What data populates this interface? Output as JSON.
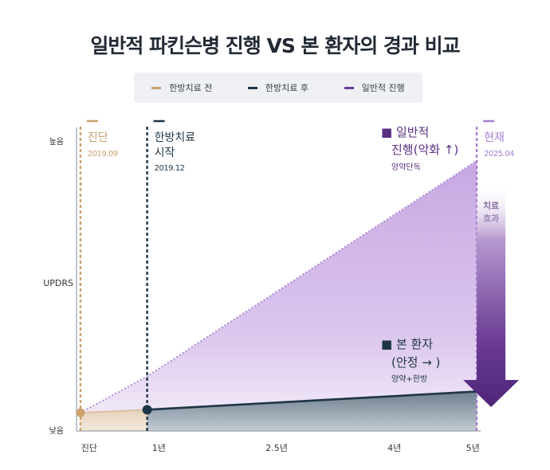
{
  "title": "일반적 파킨슨병 진행 VS 본 환자의 경과 비교",
  "legend": [
    {
      "label": "한방치료 전",
      "color": "#c9a26e"
    },
    {
      "label": "한방치료 후",
      "color": "#1e3545"
    },
    {
      "label": "일반적 진행",
      "color": "#6b3e96"
    }
  ],
  "chart_data": {
    "type": "line",
    "title": "일반적 파킨슨병 진행 VS 본 환자의 경과 비교",
    "ylabel": "UPDRS",
    "y_ticks": [
      "높음",
      "낮음"
    ],
    "x_ticks": [
      {
        "label": "진단",
        "year": 0
      },
      {
        "label": "1년",
        "year": 1
      },
      {
        "label": "2.5년",
        "year": 2.5
      },
      {
        "label": "4년",
        "year": 4
      },
      {
        "label": "5년",
        "year": 5
      }
    ],
    "xlim": [
      -0.05,
      5.1
    ],
    "ylim": [
      0,
      100
    ],
    "series": [
      {
        "name": "한방치료 전",
        "color": "#c9a26e",
        "points": [
          [
            0,
            6
          ],
          [
            0.85,
            7
          ]
        ]
      },
      {
        "name": "한방치료 후",
        "color": "#1e3545",
        "points": [
          [
            0.85,
            7
          ],
          [
            5.05,
            13
          ]
        ]
      },
      {
        "name": "일반적 진행",
        "color": "#6b3e96",
        "points": [
          [
            0,
            6
          ],
          [
            0.85,
            18
          ],
          [
            5.05,
            89
          ]
        ]
      }
    ],
    "markers": [
      {
        "title": "진단",
        "date": "2019.09",
        "year": 0,
        "color": "#c9a26e"
      },
      {
        "title": "한방치료\n시작",
        "date": "2019.12",
        "year": 0.85,
        "color": "#1e3545"
      },
      {
        "title": "현재",
        "date": "2025.04",
        "year": 5.05,
        "color": "#a57fd0"
      }
    ],
    "annotations": [
      {
        "title": "■ 일반적\n진행(악화 ↑)",
        "sub": "양약단독",
        "color": "#5a2f82"
      },
      {
        "title": "■ 본 환자\n(안정 → )",
        "sub": "양약+한방",
        "color": "#1e3545"
      },
      {
        "title": "치료\n효과",
        "color": "#4a2a75"
      }
    ]
  }
}
